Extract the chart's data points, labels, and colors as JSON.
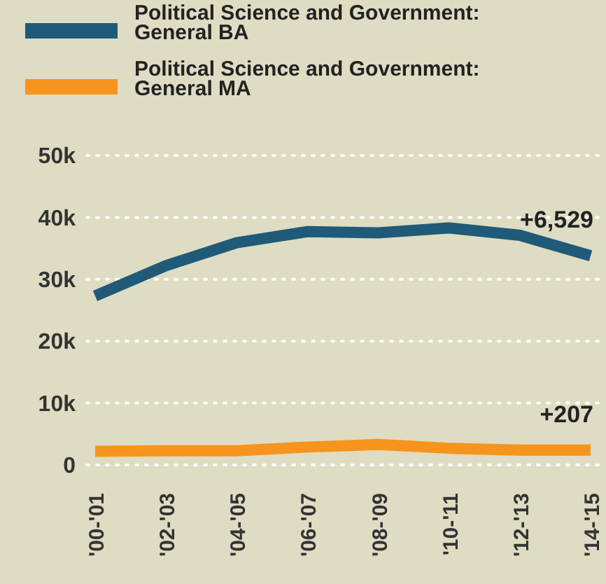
{
  "chart_data": {
    "type": "line",
    "categories": [
      "'00-'01",
      "'02-'03",
      "'04-'05",
      "'06-'07",
      "'08-'09",
      "'10-'11",
      "'12-'13",
      "'14-'15"
    ],
    "series": [
      {
        "name": "Political Science and Government: General BA",
        "color": "#1f5a78",
        "values": [
          27.3,
          32.2,
          35.9,
          37.7,
          37.5,
          38.3,
          37.1,
          33.8
        ]
      },
      {
        "name": "Political Science and Government: General MA",
        "color": "#f7941d",
        "values": [
          2.2,
          2.3,
          2.3,
          2.9,
          3.3,
          2.7,
          2.4,
          2.4
        ]
      }
    ],
    "ylim": [
      0,
      50
    ],
    "yticks": [
      {
        "value": 0,
        "label": "0"
      },
      {
        "value": 10,
        "label": "10k"
      },
      {
        "value": 20,
        "label": "20k"
      },
      {
        "value": 30,
        "label": "30k"
      },
      {
        "value": 40,
        "label": "40k"
      },
      {
        "value": 50,
        "label": "50k"
      }
    ],
    "grid": "y",
    "legend": "top left",
    "marker": "none",
    "line_style": "solid",
    "annotations": [
      {
        "text": "+6,529",
        "x": "'14-'15",
        "y": 33.8
      },
      {
        "text": "+207",
        "x": "'14-'15",
        "y": 2.4
      }
    ]
  }
}
